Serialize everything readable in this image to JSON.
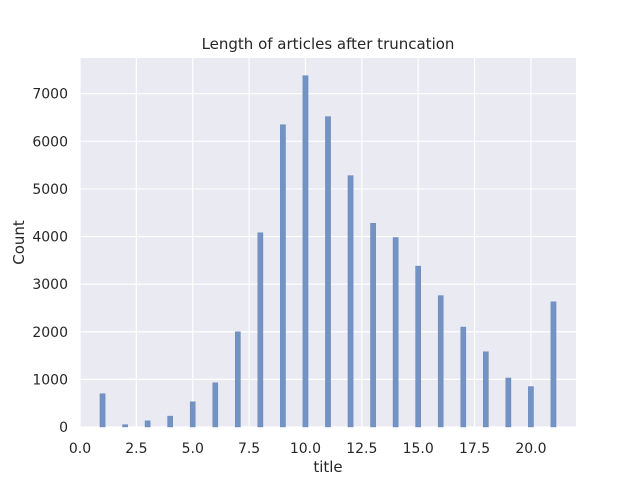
{
  "chart_data": {
    "type": "bar",
    "title": "Length of articles after truncation",
    "xlabel": "title",
    "ylabel": "Count",
    "xlim": [
      0,
      22
    ],
    "ylim": [
      0,
      7750
    ],
    "xticks": [
      0.0,
      2.5,
      5.0,
      7.5,
      10.0,
      12.5,
      15.0,
      17.5,
      20.0
    ],
    "xtick_labels": [
      "0.0",
      "2.5",
      "5.0",
      "7.5",
      "10.0",
      "12.5",
      "15.0",
      "17.5",
      "20.0"
    ],
    "yticks": [
      0,
      1000,
      2000,
      3000,
      4000,
      5000,
      6000,
      7000
    ],
    "ytick_labels": [
      "0",
      "1000",
      "2000",
      "3000",
      "4000",
      "5000",
      "6000",
      "7000"
    ],
    "grid": true,
    "bar_color": "#7393c4",
    "background_color": "#eaeaf2",
    "bars": [
      {
        "x": 1,
        "value": 700
      },
      {
        "x": 2,
        "value": 50
      },
      {
        "x": 3,
        "value": 130
      },
      {
        "x": 4,
        "value": 230
      },
      {
        "x": 5,
        "value": 530
      },
      {
        "x": 6,
        "value": 930
      },
      {
        "x": 7,
        "value": 2000
      },
      {
        "x": 8,
        "value": 4080
      },
      {
        "x": 9,
        "value": 6350
      },
      {
        "x": 10,
        "value": 7380
      },
      {
        "x": 11,
        "value": 6520
      },
      {
        "x": 12,
        "value": 5280
      },
      {
        "x": 13,
        "value": 4280
      },
      {
        "x": 14,
        "value": 3980
      },
      {
        "x": 15,
        "value": 3380
      },
      {
        "x": 16,
        "value": 2760
      },
      {
        "x": 17,
        "value": 2100
      },
      {
        "x": 18,
        "value": 1580
      },
      {
        "x": 19,
        "value": 1030
      },
      {
        "x": 20,
        "value": 850
      },
      {
        "x": 21,
        "value": 2630
      }
    ]
  }
}
